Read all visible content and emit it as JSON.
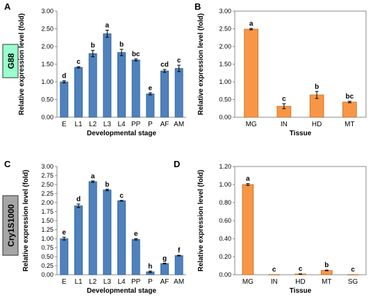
{
  "gene_labels": [
    {
      "text": "G88",
      "color": "#99ffcc"
    },
    {
      "text": "Cry1S1000",
      "color": "#a6a6a6"
    }
  ],
  "colors": {
    "blue": "#4f81bd",
    "orange": "#f79646",
    "blue_edge": "#2f5f95",
    "orange_edge": "#c66a1f"
  },
  "chart_data": [
    {
      "panel": "A",
      "type": "bar",
      "categories": [
        "E",
        "L1",
        "L2",
        "L3",
        "L4",
        "PP",
        "P",
        "AF",
        "AM"
      ],
      "values": [
        1.0,
        1.41,
        1.8,
        2.36,
        1.83,
        1.62,
        0.66,
        1.31,
        1.38
      ],
      "errors": [
        0.03,
        0.02,
        0.09,
        0.1,
        0.09,
        0.03,
        0.03,
        0.04,
        0.09
      ],
      "labels": [
        "d",
        "c",
        "b",
        "a",
        "b",
        "bc",
        "e",
        "cd",
        "c"
      ],
      "ylim": [
        0,
        3.0
      ],
      "yticks": [
        "0.00",
        "0.50",
        "1.00",
        "1.50",
        "2.00",
        "2.50",
        "3.00"
      ],
      "ylabel": "Relative expression level (fold)",
      "xlabel": "Developmental stage",
      "color": "blue"
    },
    {
      "panel": "B",
      "type": "bar",
      "categories": [
        "MG",
        "IN",
        "HD",
        "MT"
      ],
      "values": [
        2.49,
        0.31,
        0.63,
        0.43
      ],
      "errors": [
        0.02,
        0.07,
        0.1,
        0.02
      ],
      "labels": [
        "a",
        "c",
        "b",
        "bc"
      ],
      "ylim": [
        0,
        3.0
      ],
      "yticks": [
        "0.00",
        "0.50",
        "1.00",
        "1.50",
        "2.00",
        "2.50",
        "3.00"
      ],
      "ylabel": "Relative expression level (fold)",
      "xlabel": "Tissue",
      "color": "orange"
    },
    {
      "panel": "C",
      "type": "bar",
      "categories": [
        "E",
        "L1",
        "L2",
        "L3",
        "L4",
        "PP",
        "P",
        "AF",
        "AM"
      ],
      "values": [
        1.0,
        1.91,
        2.58,
        2.35,
        2.05,
        0.98,
        0.08,
        0.31,
        0.53
      ],
      "errors": [
        0.04,
        0.05,
        0.02,
        0.02,
        0.01,
        0.02,
        0.02,
        0.01,
        0.01
      ],
      "labels": [
        "e",
        "d",
        "a",
        "b",
        "c",
        "e",
        "h",
        "g",
        "f"
      ],
      "ylim": [
        0,
        3.0
      ],
      "yticks": [
        "0.00",
        "0.25",
        "0.50",
        "0.75",
        "1.00",
        "1.25",
        "1.50",
        "1.75",
        "2.00",
        "2.25",
        "2.50",
        "2.75",
        "3.00"
      ],
      "ylabel": "Relative expression level (fold)",
      "xlabel": "Developmental stage",
      "color": "blue"
    },
    {
      "panel": "D",
      "type": "bar",
      "categories": [
        "MG",
        "IN",
        "HD",
        "MT",
        "SG"
      ],
      "values": [
        1.0,
        0.002,
        0.008,
        0.048,
        0.002
      ],
      "errors": [
        0.01,
        0.0,
        0.002,
        0.004,
        0.0
      ],
      "labels": [
        "a",
        "c",
        "c",
        "b",
        "c"
      ],
      "ylim": [
        0,
        1.2
      ],
      "yticks": [
        "0.00",
        "0.20",
        "0.40",
        "0.60",
        "0.80",
        "1.00",
        "1.20"
      ],
      "ylabel": "Relative expression level (fold)",
      "xlabel": "Tissue",
      "color": "orange"
    }
  ]
}
